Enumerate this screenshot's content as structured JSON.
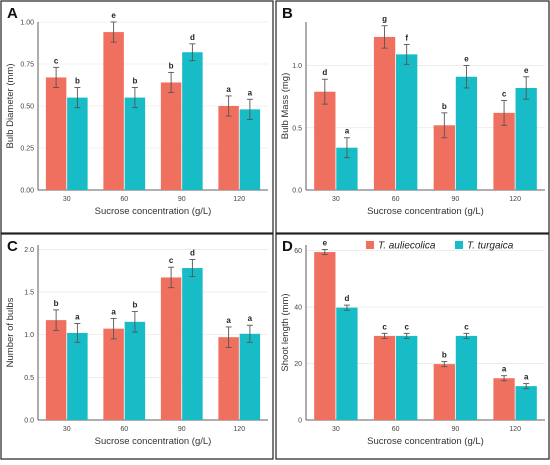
{
  "colors": {
    "series1": "#f07060",
    "series2": "#17bcc6"
  },
  "legend": {
    "position": "top-right",
    "items": [
      {
        "label": "T. auliecolica",
        "color": "#f07060"
      },
      {
        "label": "T. turgaica",
        "color": "#17bcc6"
      }
    ]
  },
  "chart_data": [
    {
      "panel": "A",
      "type": "bar",
      "grid": true,
      "categories": [
        "30",
        "60",
        "90",
        "120"
      ],
      "xlabel": "Sucrose concentration (g/L)",
      "ylabel": "Bulb Diameter (mm)",
      "ylim": [
        0,
        1.0
      ],
      "yticks": [
        0,
        0.25,
        0.5,
        0.75,
        1.0
      ],
      "ytick_labels": [
        "0.00",
        "0.25",
        "0.50",
        "0.75",
        "1.00"
      ],
      "series": [
        {
          "values": [
            0.67,
            0.94,
            0.64,
            0.5
          ],
          "errors": [
            0.06,
            0.06,
            0.06,
            0.06
          ],
          "letters": [
            "c",
            "e",
            "b",
            "a"
          ]
        },
        {
          "values": [
            0.55,
            0.55,
            0.82,
            0.48
          ],
          "errors": [
            0.06,
            0.06,
            0.05,
            0.06
          ],
          "letters": [
            "b",
            "b",
            "d",
            "a"
          ]
        }
      ]
    },
    {
      "panel": "B",
      "type": "bar",
      "grid": true,
      "categories": [
        "30",
        "60",
        "90",
        "120"
      ],
      "xlabel": "Sucrose concentration (g/L)",
      "ylabel": "Bulb Mass (mg)",
      "ylim": [
        0,
        1.35
      ],
      "yticks": [
        0,
        0.5,
        1.0
      ],
      "ytick_labels": [
        "0.0",
        "0.5",
        "1.0"
      ],
      "series": [
        {
          "values": [
            0.79,
            1.23,
            0.52,
            0.62
          ],
          "errors": [
            0.1,
            0.09,
            0.1,
            0.1
          ],
          "letters": [
            "d",
            "g",
            "b",
            "c"
          ]
        },
        {
          "values": [
            0.34,
            1.09,
            0.91,
            0.82
          ],
          "errors": [
            0.08,
            0.08,
            0.09,
            0.09
          ],
          "letters": [
            "a",
            "f",
            "e",
            "e"
          ]
        }
      ]
    },
    {
      "panel": "C",
      "type": "bar",
      "grid": true,
      "categories": [
        "30",
        "60",
        "90",
        "120"
      ],
      "xlabel": "Sucrose concentration (g/L)",
      "ylabel": "Number of bulbs",
      "ylim": [
        0,
        2.05
      ],
      "yticks": [
        0,
        0.5,
        1.0,
        1.5,
        2.0
      ],
      "ytick_labels": [
        "0.0",
        "0.5",
        "1.0",
        "1.5",
        "2.0"
      ],
      "series": [
        {
          "values": [
            1.17,
            1.07,
            1.67,
            0.97
          ],
          "errors": [
            0.12,
            0.12,
            0.12,
            0.12
          ],
          "letters": [
            "b",
            "a",
            "c",
            "a"
          ]
        },
        {
          "values": [
            1.02,
            1.15,
            1.78,
            1.01
          ],
          "errors": [
            0.11,
            0.12,
            0.1,
            0.1
          ],
          "letters": [
            "a",
            "b",
            "d",
            "a"
          ]
        }
      ]
    },
    {
      "panel": "D",
      "type": "bar",
      "grid": true,
      "categories": [
        "30",
        "60",
        "90",
        "120"
      ],
      "xlabel": "Sucrose concentration (g/L)",
      "ylabel": "Shoot length (mm)",
      "ylim": [
        0,
        62
      ],
      "yticks": [
        0,
        20,
        40,
        60
      ],
      "ytick_labels": [
        "0",
        "20",
        "40",
        "60"
      ],
      "series": [
        {
          "values": [
            59.5,
            29.8,
            19.8,
            14.8
          ],
          "errors": [
            0.9,
            0.9,
            0.9,
            0.9
          ],
          "letters": [
            "e",
            "c",
            "b",
            "a"
          ]
        },
        {
          "values": [
            39.8,
            29.8,
            29.8,
            12.0
          ],
          "errors": [
            0.9,
            0.9,
            0.9,
            0.9
          ],
          "letters": [
            "d",
            "c",
            "c",
            "a"
          ]
        }
      ]
    }
  ]
}
